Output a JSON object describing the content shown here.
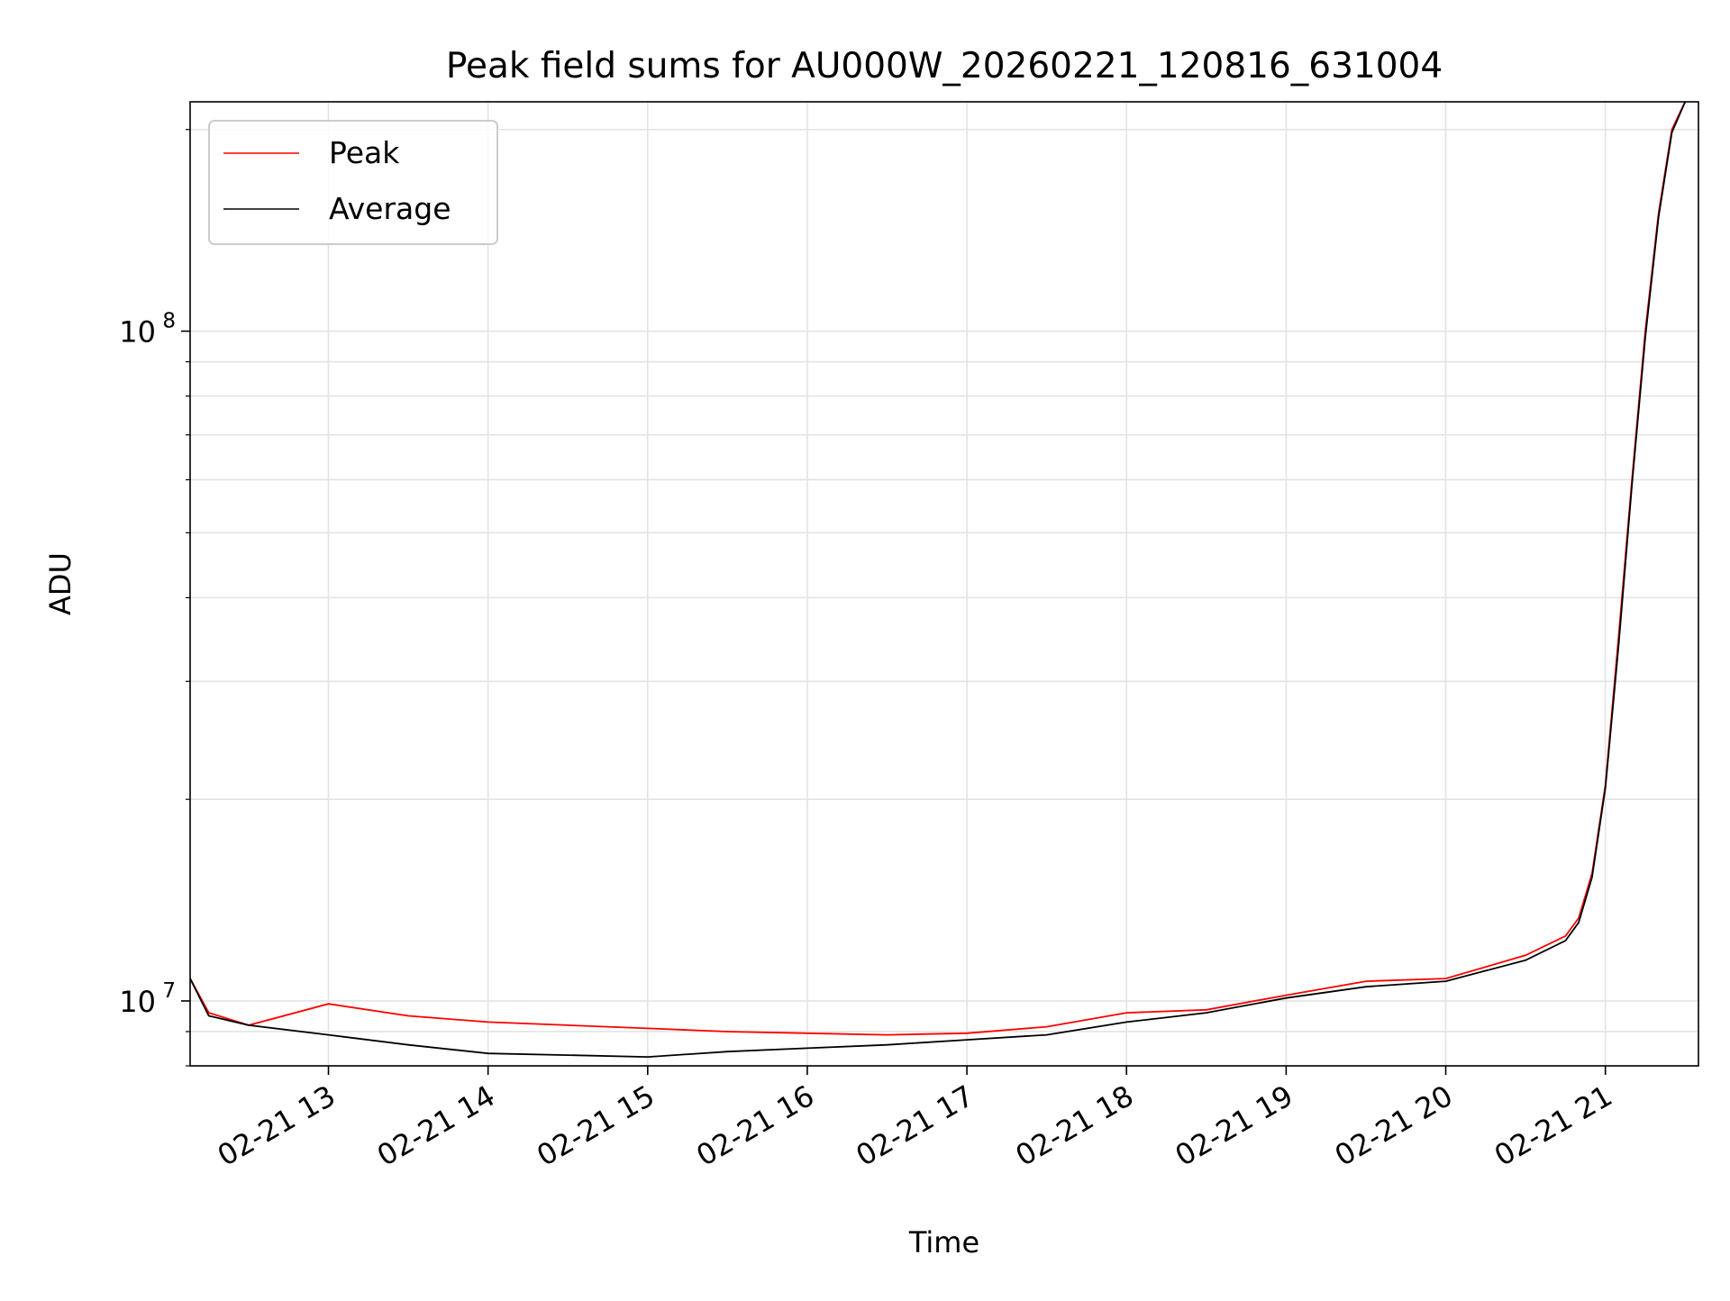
{
  "chart_data": {
    "type": "line",
    "title": "Peak field sums for AU000W_20260221_120816_631004",
    "xlabel": "Time",
    "ylabel": "ADU",
    "y_scale": "log",
    "ylim": [
      8000000,
      220000000
    ],
    "xlim": [
      "2026-02-21 12:08",
      "2026-02-21 21:35"
    ],
    "x_ticks": [
      "02-21 13",
      "02-21 14",
      "02-21 15",
      "02-21 16",
      "02-21 17",
      "02-21 18",
      "02-21 19",
      "02-21 20",
      "02-21 21"
    ],
    "y_ticks": [
      {
        "value": 10000000,
        "base": "10",
        "exp": "7"
      },
      {
        "value": 100000000,
        "base": "10",
        "exp": "8"
      }
    ],
    "grid": true,
    "legend_position": "top-left",
    "series": [
      {
        "name": "Peak",
        "color": "#ff0000",
        "x": [
          "2026-02-21 12:08",
          "2026-02-21 12:15",
          "2026-02-21 12:30",
          "2026-02-21 13:00",
          "2026-02-21 13:30",
          "2026-02-21 14:00",
          "2026-02-21 14:30",
          "2026-02-21 15:00",
          "2026-02-21 15:30",
          "2026-02-21 16:00",
          "2026-02-21 16:30",
          "2026-02-21 17:00",
          "2026-02-21 17:30",
          "2026-02-21 18:00",
          "2026-02-21 18:30",
          "2026-02-21 19:00",
          "2026-02-21 19:30",
          "2026-02-21 20:00",
          "2026-02-21 20:30",
          "2026-02-21 20:45",
          "2026-02-21 20:50",
          "2026-02-21 20:55",
          "2026-02-21 21:00",
          "2026-02-21 21:05",
          "2026-02-21 21:10",
          "2026-02-21 21:15",
          "2026-02-21 21:20",
          "2026-02-21 21:25",
          "2026-02-21 21:30"
        ],
        "y": [
          10800000,
          9600000,
          9200000,
          9900000,
          9500000,
          9300000,
          9200000,
          9100000,
          9000000,
          8950000,
          8900000,
          8950000,
          9150000,
          9600000,
          9700000,
          10200000,
          10700000,
          10800000,
          11700000,
          12500000,
          13300000,
          15500000,
          21000000,
          35000000,
          60000000,
          100000000,
          150000000,
          200000000,
          220000000
        ]
      },
      {
        "name": "Average",
        "color": "#000000",
        "x": [
          "2026-02-21 12:08",
          "2026-02-21 12:15",
          "2026-02-21 12:30",
          "2026-02-21 13:00",
          "2026-02-21 13:30",
          "2026-02-21 14:00",
          "2026-02-21 14:30",
          "2026-02-21 15:00",
          "2026-02-21 15:30",
          "2026-02-21 16:00",
          "2026-02-21 16:30",
          "2026-02-21 17:00",
          "2026-02-21 17:30",
          "2026-02-21 18:00",
          "2026-02-21 18:30",
          "2026-02-21 19:00",
          "2026-02-21 19:30",
          "2026-02-21 20:00",
          "2026-02-21 20:30",
          "2026-02-21 20:45",
          "2026-02-21 20:50",
          "2026-02-21 20:55",
          "2026-02-21 21:00",
          "2026-02-21 21:05",
          "2026-02-21 21:10",
          "2026-02-21 21:15",
          "2026-02-21 21:20",
          "2026-02-21 21:25",
          "2026-02-21 21:30"
        ],
        "y": [
          10800000,
          9500000,
          9200000,
          8900000,
          8600000,
          8350000,
          8300000,
          8250000,
          8400000,
          8500000,
          8600000,
          8750000,
          8900000,
          9300000,
          9600000,
          10100000,
          10500000,
          10700000,
          11500000,
          12300000,
          13100000,
          15300000,
          20800000,
          34000000,
          59000000,
          98000000,
          148000000,
          198000000,
          220000000
        ]
      }
    ]
  }
}
